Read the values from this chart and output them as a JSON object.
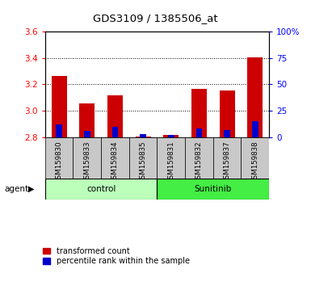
{
  "title": "GDS3109 / 1385506_at",
  "samples": [
    "GSM159830",
    "GSM159833",
    "GSM159834",
    "GSM159835",
    "GSM159831",
    "GSM159832",
    "GSM159837",
    "GSM159838"
  ],
  "groups": [
    "control",
    "control",
    "control",
    "control",
    "Sunitinib",
    "Sunitinib",
    "Sunitinib",
    "Sunitinib"
  ],
  "red_values": [
    3.265,
    3.055,
    3.115,
    2.805,
    2.815,
    3.165,
    3.155,
    3.405
  ],
  "blue_pct": [
    12,
    6,
    10,
    3,
    2,
    8,
    7,
    15
  ],
  "ylim_left": [
    2.8,
    3.6
  ],
  "ylim_right": [
    0,
    100
  ],
  "yticks_left": [
    2.8,
    3.0,
    3.2,
    3.4,
    3.6
  ],
  "yticks_right": [
    0,
    25,
    50,
    75,
    100
  ],
  "ytick_labels_right": [
    "0",
    "25",
    "50",
    "75",
    "100%"
  ],
  "bar_width": 0.55,
  "blue_bar_width": 0.22,
  "red_color": "#cc0000",
  "blue_color": "#0000cc",
  "control_color": "#bbffbb",
  "sunitinib_color": "#44ee44",
  "bg_color": "#c8c8c8",
  "legend_red": "transformed count",
  "legend_blue": "percentile rank within the sample",
  "group_label": "agent"
}
